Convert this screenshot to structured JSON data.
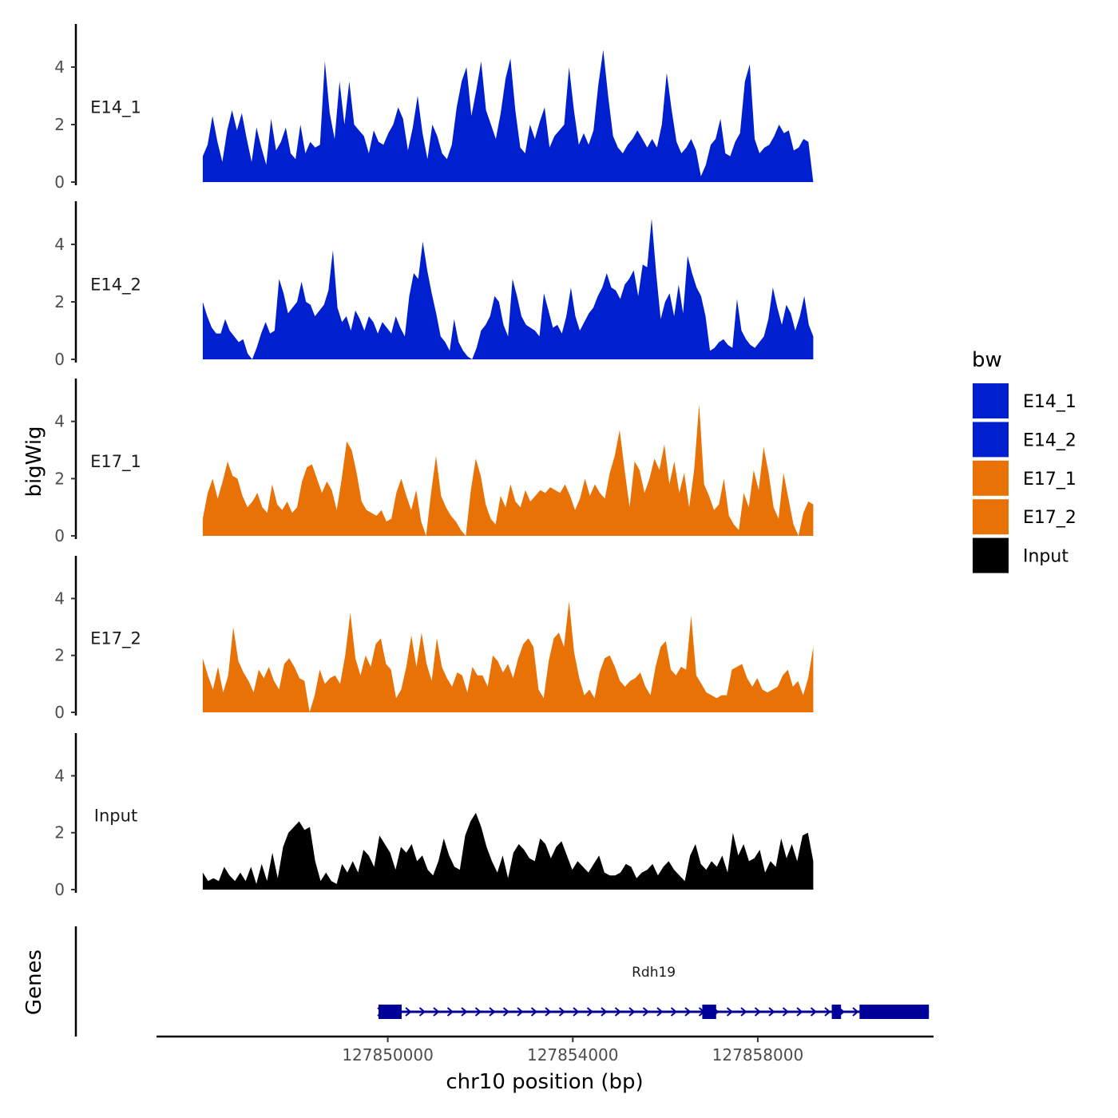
{
  "chart_data": {
    "type": "area",
    "chromosome": "chr10",
    "xlabel": "chr10 position (bp)",
    "ylabel": "bigWig",
    "genes_label": "Genes",
    "xlim": [
      127845000,
      127861800
    ],
    "ylim": [
      0,
      5.5
    ],
    "xticks": [
      127850000,
      127854000,
      127858000
    ],
    "xtick_labels": [
      "127850000",
      "127854000",
      "127858000"
    ],
    "yticks": [
      0,
      2,
      4
    ],
    "ytick_labels": [
      "0",
      "2",
      "4"
    ],
    "legend": {
      "title": "bw",
      "position": "right",
      "entries": [
        {
          "label": "E14_1",
          "color": "#0020d0"
        },
        {
          "label": "E14_2",
          "color": "#0020d0"
        },
        {
          "label": "E17_1",
          "color": "#e87206"
        },
        {
          "label": "E17_2",
          "color": "#e87206"
        },
        {
          "label": "Input",
          "color": "#000000"
        }
      ]
    },
    "x_range": [
      127846000,
      127859200
    ],
    "series": [
      {
        "name": "E14_1",
        "color": "#0020d0",
        "values": [
          0.9,
          1.3,
          2.3,
          1.4,
          0.7,
          1.8,
          2.5,
          1.8,
          2.4,
          1.5,
          0.7,
          1.9,
          1.2,
          0.6,
          2.2,
          1.1,
          1.4,
          1.9,
          1.0,
          0.8,
          2.0,
          1.0,
          1.4,
          1.2,
          1.3,
          4.2,
          2.4,
          1.5,
          3.5,
          2.0,
          3.5,
          2.0,
          1.8,
          1.6,
          1.0,
          1.8,
          1.4,
          1.3,
          1.7,
          2.0,
          2.6,
          2.2,
          1.1,
          1.9,
          3.0,
          1.7,
          0.8,
          2.0,
          1.6,
          1.0,
          0.8,
          1.3,
          2.6,
          3.5,
          4.0,
          2.3,
          3.2,
          4.2,
          2.5,
          2.0,
          1.5,
          2.4,
          3.6,
          4.3,
          2.5,
          1.2,
          1.0,
          2.0,
          1.5,
          2.1,
          2.6,
          1.2,
          1.6,
          1.8,
          2.0,
          4.0,
          2.5,
          1.3,
          1.7,
          1.3,
          1.8,
          3.4,
          4.6,
          3.0,
          1.6,
          1.2,
          1.0,
          1.3,
          1.5,
          1.8,
          1.5,
          1.2,
          1.5,
          1.2,
          2.0,
          3.8,
          2.5,
          1.4,
          1.0,
          1.2,
          1.5,
          1.1,
          0.2,
          0.6,
          1.3,
          1.5,
          2.2,
          1.0,
          0.9,
          1.4,
          1.7,
          3.5,
          4.1,
          1.5,
          1.0,
          1.2,
          1.3,
          1.6,
          2.0,
          1.7,
          1.8,
          1.1,
          1.2,
          1.5,
          1.4,
          0.0
        ]
      },
      {
        "name": "E14_2",
        "color": "#0020d0",
        "values": [
          2.0,
          1.5,
          1.1,
          0.9,
          0.9,
          1.4,
          1.0,
          0.8,
          0.6,
          0.7,
          0.2,
          0.0,
          0.4,
          0.9,
          1.3,
          0.9,
          1.0,
          2.8,
          2.3,
          1.6,
          1.8,
          2.0,
          2.7,
          2.0,
          1.9,
          1.5,
          1.7,
          1.9,
          2.4,
          3.8,
          1.8,
          1.3,
          1.5,
          1.0,
          1.7,
          1.4,
          1.0,
          1.5,
          1.3,
          0.9,
          1.3,
          1.1,
          0.9,
          1.5,
          1.1,
          0.8,
          2.2,
          3.0,
          2.8,
          4.1,
          3.1,
          2.3,
          1.6,
          0.8,
          0.6,
          0.3,
          1.4,
          0.6,
          0.3,
          0.1,
          0.0,
          0.4,
          1.0,
          1.2,
          1.5,
          2.2,
          2.0,
          1.2,
          0.8,
          2.8,
          2.2,
          1.5,
          1.2,
          1.1,
          1.0,
          0.8,
          2.3,
          1.7,
          1.1,
          1.2,
          0.9,
          1.5,
          2.5,
          1.5,
          1.0,
          1.3,
          1.6,
          1.8,
          2.2,
          2.5,
          3.0,
          2.5,
          2.4,
          2.1,
          2.6,
          2.8,
          3.1,
          2.2,
          3.3,
          3.2,
          4.9,
          3.0,
          1.4,
          2.0,
          2.3,
          1.5,
          2.6,
          1.6,
          3.6,
          3.0,
          2.5,
          2.2,
          1.5,
          0.3,
          0.4,
          0.6,
          0.7,
          0.5,
          0.4,
          2.1,
          1.0,
          0.7,
          0.5,
          0.4,
          0.6,
          0.8,
          1.4,
          2.5,
          1.8,
          1.2,
          1.9,
          1.6,
          1.0,
          1.5,
          2.2,
          1.2,
          0.8
        ]
      },
      {
        "name": "E17_1",
        "color": "#e87206",
        "values": [
          0.6,
          1.5,
          2.0,
          1.3,
          1.9,
          2.6,
          2.1,
          2.0,
          1.4,
          1.0,
          1.2,
          1.5,
          1.0,
          0.8,
          1.8,
          1.1,
          0.9,
          1.2,
          0.8,
          1.0,
          1.9,
          2.4,
          2.5,
          2.0,
          1.5,
          1.9,
          1.6,
          0.9,
          2.0,
          3.3,
          3.0,
          2.2,
          1.2,
          0.9,
          0.8,
          0.7,
          0.9,
          0.5,
          0.6,
          1.5,
          2.0,
          1.4,
          0.9,
          1.6,
          0.5,
          0.0,
          1.5,
          2.8,
          1.4,
          1.0,
          0.7,
          0.5,
          0.2,
          0.0,
          1.6,
          2.7,
          2.1,
          1.1,
          0.6,
          0.4,
          1.4,
          1.0,
          1.8,
          1.2,
          1.0,
          1.6,
          1.2,
          1.4,
          1.6,
          1.5,
          1.7,
          1.6,
          1.5,
          1.8,
          1.4,
          0.9,
          1.3,
          2.0,
          1.4,
          1.8,
          1.5,
          1.3,
          2.2,
          2.8,
          3.7,
          2.3,
          1.0,
          2.6,
          2.3,
          1.5,
          2.0,
          2.7,
          2.3,
          3.2,
          1.8,
          2.6,
          1.5,
          2.2,
          1.0,
          2.3,
          4.6,
          1.8,
          1.4,
          0.9,
          1.1,
          2.0,
          0.7,
          0.4,
          0.2,
          1.5,
          1.0,
          2.3,
          1.6,
          3.1,
          2.2,
          1.0,
          0.6,
          2.2,
          1.3,
          0.4,
          0.0,
          0.8,
          1.2,
          1.1
        ]
      },
      {
        "name": "E17_2",
        "color": "#e87206",
        "values": [
          1.9,
          1.3,
          0.8,
          1.6,
          0.7,
          1.3,
          3.0,
          1.8,
          1.4,
          1.1,
          0.7,
          1.5,
          1.2,
          1.6,
          1.1,
          0.8,
          1.7,
          1.9,
          1.6,
          1.2,
          1.1,
          0.0,
          0.6,
          1.5,
          1.0,
          1.2,
          1.3,
          1.0,
          2.0,
          3.5,
          1.9,
          1.3,
          2.0,
          1.6,
          2.4,
          2.6,
          1.7,
          1.5,
          0.5,
          0.8,
          1.6,
          2.7,
          1.6,
          2.8,
          1.7,
          1.1,
          2.6,
          1.6,
          1.2,
          0.9,
          1.4,
          1.3,
          0.7,
          1.6,
          1.3,
          1.3,
          0.9,
          2.0,
          1.8,
          1.4,
          1.7,
          1.2,
          1.9,
          2.4,
          2.6,
          2.3,
          0.8,
          0.5,
          1.8,
          2.6,
          2.8,
          2.3,
          3.9,
          2.1,
          1.2,
          0.6,
          0.8,
          0.5,
          1.4,
          1.9,
          2.0,
          1.6,
          1.1,
          0.9,
          1.1,
          1.2,
          1.4,
          0.9,
          0.6,
          1.6,
          2.3,
          2.5,
          1.5,
          1.3,
          1.6,
          1.5,
          3.4,
          1.3,
          1.0,
          0.7,
          0.6,
          0.5,
          0.6,
          0.6,
          1.5,
          1.6,
          1.7,
          1.2,
          0.9,
          1.2,
          0.8,
          0.7,
          0.8,
          0.9,
          1.3,
          1.5,
          0.9,
          1.1,
          0.6,
          1.2,
          2.3
        ]
      },
      {
        "name": "Input",
        "color": "#000000",
        "values": [
          0.6,
          0.3,
          0.4,
          0.3,
          0.8,
          0.5,
          0.3,
          0.6,
          0.3,
          0.8,
          0.2,
          0.9,
          0.3,
          1.3,
          0.4,
          1.5,
          2.0,
          2.2,
          2.4,
          2.1,
          2.2,
          1.0,
          0.3,
          0.6,
          0.3,
          0.2,
          0.9,
          0.6,
          1.0,
          0.6,
          1.4,
          1.2,
          0.8,
          1.9,
          1.6,
          1.3,
          0.7,
          1.5,
          1.3,
          1.6,
          1.0,
          1.2,
          0.7,
          0.5,
          1.0,
          1.8,
          1.2,
          0.8,
          0.7,
          1.9,
          2.4,
          2.7,
          2.2,
          1.5,
          1.0,
          0.6,
          1.2,
          0.4,
          1.3,
          1.6,
          1.4,
          1.1,
          1.0,
          1.8,
          1.6,
          1.1,
          1.5,
          1.7,
          1.2,
          0.7,
          1.0,
          0.8,
          0.6,
          0.9,
          1.2,
          0.6,
          0.5,
          0.5,
          0.6,
          0.9,
          0.8,
          0.4,
          0.6,
          0.7,
          0.9,
          0.5,
          0.8,
          1.0,
          0.7,
          0.5,
          0.3,
          1.2,
          1.6,
          0.9,
          0.7,
          1.0,
          0.8,
          1.2,
          0.6,
          2.0,
          1.2,
          1.6,
          1.0,
          1.1,
          1.4,
          0.6,
          1.0,
          0.8,
          1.8,
          1.1,
          1.6,
          1.0,
          1.9,
          2.0,
          1.0
        ]
      }
    ],
    "genes": [
      {
        "name": "Rdh19",
        "start": 127849800,
        "end": 127861700,
        "strand": "+",
        "color": "#000099",
        "exons": [
          [
            127849800,
            127850300
          ],
          [
            127856800,
            127857100
          ],
          [
            127859600,
            127859800
          ],
          [
            127860200,
            127861700
          ]
        ]
      }
    ]
  }
}
